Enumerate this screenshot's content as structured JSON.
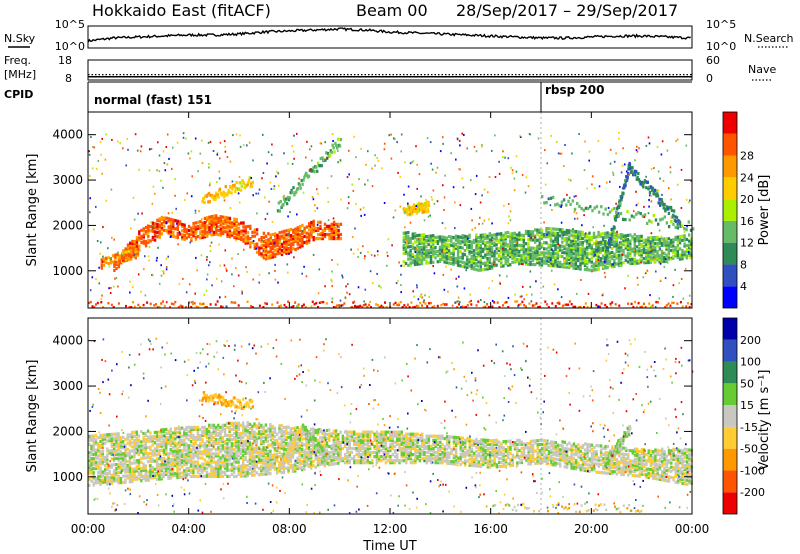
{
  "header": {
    "title": "Hokkaido East (fitACF)",
    "beam": "Beam 00",
    "date_range": "28/Sep/2017 – 29/Sep/2017"
  },
  "strip_labels": {
    "nsky": "N.Sky",
    "nsearch": "N.Search",
    "freq": "Freq.",
    "freq_unit": "[MHz]",
    "nave": "Nave",
    "cpid": "CPID"
  },
  "cpid_segments": [
    {
      "label": "normal (fast) 151",
      "start_hour": 0
    },
    {
      "label": "rbsp 200",
      "start_hour": 18
    }
  ],
  "colors": {
    "power": [
      "#0000ff",
      "#3050c0",
      "#2e8b57",
      "#66bb66",
      "#aaee00",
      "#ffcc00",
      "#ff9900",
      "#ff5500",
      "#ee0000"
    ],
    "velocity": [
      "#ee0000",
      "#ff5500",
      "#ff9900",
      "#ffcc33",
      "#c8c8c0",
      "#66cc33",
      "#2e8b57",
      "#3050c0",
      "#0000aa"
    ]
  },
  "chart_data": [
    {
      "type": "line",
      "panel": "noise",
      "left_ticks": [
        "10^5",
        "10^0"
      ],
      "right_ticks": [
        "10^5",
        "10^0"
      ],
      "x": [
        0,
        1,
        2,
        3,
        4,
        5,
        6,
        7,
        8,
        9,
        10,
        11,
        12,
        13,
        14,
        15,
        16,
        17,
        18,
        19,
        20,
        21,
        22,
        23,
        24
      ],
      "series": [
        {
          "values": [
            0.3,
            0.45,
            0.5,
            0.55,
            0.6,
            0.6,
            0.65,
            0.75,
            0.8,
            0.85,
            0.9,
            0.85,
            0.75,
            0.7,
            0.65,
            0.6,
            0.55,
            0.5,
            0.45,
            0.45,
            0.5,
            0.55,
            0.55,
            0.5,
            0.45
          ]
        }
      ]
    },
    {
      "type": "line",
      "panel": "frequency",
      "left_ticks": [
        "18",
        "8"
      ],
      "right_ticks": [
        "60",
        "0"
      ],
      "x": [
        0,
        24
      ],
      "series": [
        {
          "values": [
            11,
            11
          ]
        },
        {
          "values": [
            9.8,
            9.8
          ]
        }
      ]
    },
    {
      "type": "heatmap",
      "panel": "power",
      "ylabel": "Slant Range [km]",
      "yticks": [
        1000,
        2000,
        3000,
        4000
      ],
      "ylim": [
        180,
        4500
      ],
      "xlim": [
        0,
        24
      ],
      "colorbar": {
        "label": "Power [dB]",
        "ticks": [
          4,
          8,
          12,
          16,
          20,
          24,
          28
        ]
      },
      "features": [
        {
          "kind": "band",
          "x": [
            1,
            2,
            3,
            4,
            5,
            6,
            7,
            8,
            9,
            10
          ],
          "low": [
            1000,
            1450,
            1800,
            1650,
            1800,
            1700,
            1250,
            1400,
            1700,
            1700
          ],
          "high": [
            1200,
            1900,
            2200,
            2000,
            2250,
            2100,
            1800,
            1900,
            2100,
            2050
          ],
          "value": 26
        },
        {
          "kind": "band",
          "x": [
            12.5,
            14,
            15.5,
            17,
            18.5,
            20,
            21.5,
            23,
            24
          ],
          "low": [
            1100,
            1200,
            1000,
            1150,
            1100,
            1000,
            1150,
            1200,
            1300
          ],
          "high": [
            1850,
            1750,
            1800,
            1850,
            1950,
            1850,
            1800,
            1700,
            1800
          ],
          "value": 12
        },
        {
          "kind": "band",
          "x": [
            0.5,
            1,
            2
          ],
          "low": [
            1050,
            1150,
            1300
          ],
          "high": [
            1250,
            1350,
            1500
          ],
          "value": 24
        },
        {
          "kind": "streak",
          "x": [
            7.5,
            10
          ],
          "y": [
            2400,
            3900
          ],
          "value": 12
        },
        {
          "kind": "streak",
          "x": [
            4.5,
            6.5
          ],
          "y": [
            2600,
            3000
          ],
          "value": 20
        },
        {
          "kind": "streak",
          "x": [
            12.5,
            13.5
          ],
          "y": [
            2350,
            2450
          ],
          "value": 20
        },
        {
          "kind": "streak",
          "x": [
            20.5,
            21.5
          ],
          "y": [
            1300,
            3400
          ],
          "value": 8
        },
        {
          "kind": "streak",
          "x": [
            21.5,
            23.5
          ],
          "y": [
            3300,
            2100
          ],
          "value": 8
        },
        {
          "kind": "streak",
          "x": [
            18,
            24
          ],
          "y": [
            2600,
            2000
          ],
          "value": 12
        },
        {
          "kind": "strip",
          "x": [
            0,
            24
          ],
          "y": [
            200,
            350
          ],
          "value": 28
        }
      ]
    },
    {
      "type": "heatmap",
      "panel": "velocity",
      "ylabel": "Slant Range [km]",
      "xlabel": "Time UT",
      "xticks": [
        "00:00",
        "04:00",
        "08:00",
        "12:00",
        "16:00",
        "20:00",
        "00:00"
      ],
      "yticks": [
        1000,
        2000,
        3000,
        4000
      ],
      "ylim": [
        180,
        4500
      ],
      "xlim": [
        0,
        24
      ],
      "colorbar": {
        "label": "Velocity [m s⁻¹]",
        "ticks": [
          -200,
          -100,
          -50,
          -15,
          15,
          50,
          100,
          200
        ]
      },
      "features": [
        {
          "kind": "band",
          "x": [
            0,
            2,
            4,
            6,
            8,
            10,
            12,
            14,
            16,
            18,
            20,
            22,
            24
          ],
          "low": [
            800,
            900,
            1000,
            1000,
            1100,
            1300,
            1300,
            1300,
            1200,
            1300,
            1100,
            1000,
            800
          ],
          "high": [
            1900,
            2000,
            2100,
            2200,
            2100,
            2000,
            2000,
            1900,
            1800,
            1800,
            1700,
            1600,
            1600
          ],
          "value": 0
        },
        {
          "kind": "streak",
          "x": [
            7.5,
            8.5
          ],
          "y": [
            1200,
            2100
          ],
          "value": -40
        },
        {
          "kind": "streak",
          "x": [
            8.5,
            9.5
          ],
          "y": [
            2100,
            1400
          ],
          "value": 40
        },
        {
          "kind": "streak",
          "x": [
            20.5,
            21.5
          ],
          "y": [
            1300,
            2100
          ],
          "value": 40
        },
        {
          "kind": "streak",
          "x": [
            4.5,
            6.5
          ],
          "y": [
            2800,
            2600
          ],
          "value": -80
        },
        {
          "kind": "strip",
          "x": [
            16,
            22
          ],
          "y": [
            250,
            450
          ],
          "value": -40
        }
      ]
    }
  ]
}
